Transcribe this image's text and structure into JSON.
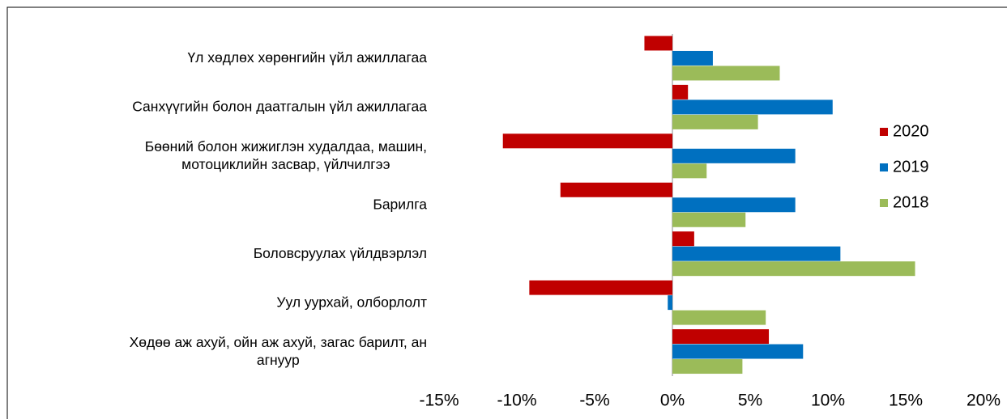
{
  "chart_data": {
    "type": "hbar",
    "categories": [
      "Үл хөдлөх хөрөнгийн үйл ажиллагаа",
      "Санхүүгийн болон даатгалын  үйл ажиллагаа",
      "Бөөний болон жижиглэн худалдаа,  машин,\nмотоциклийн засвар, үйлчилгээ",
      "Барилга",
      "Боловсруулах үйлдвэрлэл",
      "Уул уурхай,  олборлолт",
      "Хөдөө аж ахуй,  ойн аж ахуй,  загас барилт,  ан\nагнуур"
    ],
    "series": [
      {
        "name": "2020",
        "color": "#c00000",
        "values": [
          -1.8,
          1.0,
          -10.9,
          -7.2,
          1.4,
          -9.2,
          6.2
        ]
      },
      {
        "name": "2019",
        "color": "#0070c0",
        "values": [
          2.6,
          10.3,
          7.9,
          7.9,
          10.8,
          -0.3,
          8.4
        ]
      },
      {
        "name": "2018",
        "color": "#9bbb59",
        "values": [
          6.9,
          5.5,
          2.2,
          4.7,
          15.6,
          6.0,
          4.5
        ]
      }
    ],
    "xlim": [
      -15,
      20
    ],
    "xticks": [
      {
        "value": -15,
        "label": "-15%"
      },
      {
        "value": -10,
        "label": "-10%"
      },
      {
        "value": -5,
        "label": "-5%"
      },
      {
        "value": 0,
        "label": "0%"
      },
      {
        "value": 5,
        "label": "5%"
      },
      {
        "value": 10,
        "label": "10%"
      },
      {
        "value": 15,
        "label": "15%"
      },
      {
        "value": 20,
        "label": "20%"
      }
    ],
    "legend": "right"
  }
}
